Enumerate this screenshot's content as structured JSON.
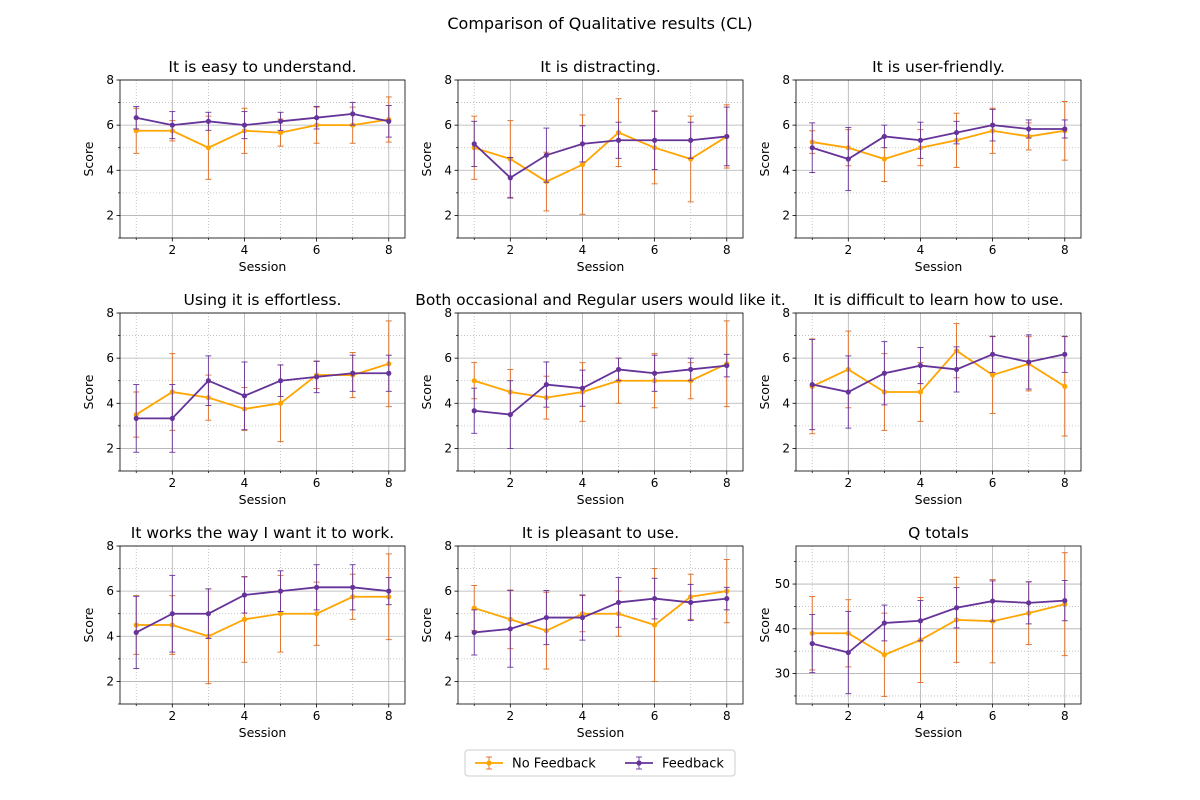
{
  "figure_title": "Comparison of Qualitative results (CL)",
  "legend": {
    "placement": "bottom-center",
    "entries": [
      {
        "label": "No Feedback",
        "color": "#FFA500"
      },
      {
        "label": "Feedback",
        "color": "#663399"
      }
    ]
  },
  "colors": {
    "no_feedback_line": "#FFA500",
    "no_feedback_errorbar": "#E06A1E",
    "feedback_line": "#663399",
    "feedback_errorbar": "#663399"
  },
  "chart_data": [
    {
      "type": "line",
      "title": "It is easy to understand.",
      "xlabel": "Session",
      "ylabel": "Score",
      "xlim": [
        0.55,
        8.45
      ],
      "ylim": [
        1,
        8
      ],
      "xticks": [
        2,
        4,
        6,
        8
      ],
      "yticks": [
        2,
        4,
        6,
        8
      ],
      "grid": true,
      "x": [
        1,
        2,
        3,
        4,
        5,
        6,
        7,
        8
      ],
      "series": [
        {
          "name": "No Feedback",
          "values": [
            5.75,
            5.75,
            5.0,
            5.75,
            5.67,
            6.0,
            6.0,
            6.25
          ],
          "errors": [
            1.0,
            0.45,
            1.4,
            1.0,
            0.6,
            0.8,
            0.8,
            1.0
          ]
        },
        {
          "name": "Feedback",
          "values": [
            6.33,
            6.0,
            6.17,
            6.0,
            6.17,
            6.33,
            6.5,
            6.17
          ],
          "errors": [
            0.5,
            0.6,
            0.4,
            0.6,
            0.4,
            0.5,
            0.5,
            0.7
          ]
        }
      ]
    },
    {
      "type": "line",
      "title": "It is distracting.",
      "xlabel": "Session",
      "ylabel": "Score",
      "xlim": [
        0.55,
        8.45
      ],
      "ylim": [
        1,
        8
      ],
      "xticks": [
        2,
        4,
        6,
        8
      ],
      "yticks": [
        2,
        4,
        6,
        8
      ],
      "grid": true,
      "x": [
        1,
        2,
        3,
        4,
        5,
        6,
        7,
        8
      ],
      "series": [
        {
          "name": "No Feedback",
          "values": [
            5.0,
            4.5,
            3.5,
            4.25,
            5.67,
            5.0,
            4.5,
            5.5
          ],
          "errors": [
            1.4,
            1.7,
            1.3,
            2.2,
            1.5,
            1.6,
            1.9,
            1.4
          ]
        },
        {
          "name": "Feedback",
          "values": [
            5.17,
            3.67,
            4.67,
            5.17,
            5.33,
            5.33,
            5.33,
            5.5
          ],
          "errors": [
            1.0,
            0.9,
            1.2,
            0.8,
            0.8,
            1.3,
            0.8,
            1.3
          ]
        }
      ]
    },
    {
      "type": "line",
      "title": "It is user-friendly.",
      "xlabel": "Session",
      "ylabel": "Score",
      "xlim": [
        0.55,
        8.45
      ],
      "ylim": [
        1,
        8
      ],
      "xticks": [
        2,
        4,
        6,
        8
      ],
      "yticks": [
        2,
        4,
        6,
        8
      ],
      "grid": true,
      "x": [
        1,
        2,
        3,
        4,
        5,
        6,
        7,
        8
      ],
      "series": [
        {
          "name": "No Feedback",
          "values": [
            5.25,
            5.0,
            4.5,
            5.0,
            5.33,
            5.75,
            5.5,
            5.75
          ],
          "errors": [
            0.5,
            0.8,
            1.0,
            0.8,
            1.2,
            1.0,
            0.6,
            1.3
          ]
        },
        {
          "name": "Feedback",
          "values": [
            5.0,
            4.5,
            5.5,
            5.33,
            5.67,
            6.0,
            5.83,
            5.83
          ],
          "errors": [
            1.1,
            1.4,
            0.5,
            0.8,
            0.5,
            0.7,
            0.4,
            0.4
          ]
        }
      ]
    },
    {
      "type": "line",
      "title": "Using it is effortless.",
      "xlabel": "Session",
      "ylabel": "Score",
      "xlim": [
        0.55,
        8.45
      ],
      "ylim": [
        1,
        8
      ],
      "xticks": [
        2,
        4,
        6,
        8
      ],
      "yticks": [
        2,
        4,
        6,
        8
      ],
      "grid": true,
      "x": [
        1,
        2,
        3,
        4,
        5,
        6,
        7,
        8
      ],
      "series": [
        {
          "name": "No Feedback",
          "values": [
            3.5,
            4.5,
            4.25,
            3.75,
            4.0,
            5.25,
            5.25,
            5.75
          ],
          "errors": [
            1.0,
            1.7,
            1.0,
            0.95,
            1.7,
            0.6,
            1.0,
            1.9
          ]
        },
        {
          "name": "Feedback",
          "values": [
            3.33,
            3.33,
            5.0,
            4.33,
            5.0,
            5.17,
            5.33,
            5.33
          ],
          "errors": [
            1.5,
            1.5,
            1.1,
            1.5,
            0.7,
            0.7,
            0.8,
            0.8
          ]
        }
      ]
    },
    {
      "type": "line",
      "title": "Both occasional and Regular users would like it.",
      "xlabel": "Session",
      "ylabel": "Score",
      "xlim": [
        0.55,
        8.45
      ],
      "ylim": [
        1,
        8
      ],
      "xticks": [
        2,
        4,
        6,
        8
      ],
      "yticks": [
        2,
        4,
        6,
        8
      ],
      "grid": true,
      "x": [
        1,
        2,
        3,
        4,
        5,
        6,
        7,
        8
      ],
      "series": [
        {
          "name": "No Feedback",
          "values": [
            5.0,
            4.5,
            4.25,
            4.5,
            5.0,
            5.0,
            5.0,
            5.75
          ],
          "errors": [
            0.8,
            1.0,
            0.95,
            1.3,
            1.0,
            1.2,
            0.8,
            1.9
          ]
        },
        {
          "name": "Feedback",
          "values": [
            3.67,
            3.5,
            4.83,
            4.67,
            5.5,
            5.33,
            5.5,
            5.67
          ],
          "errors": [
            1.0,
            1.5,
            1.0,
            0.8,
            0.5,
            0.8,
            0.5,
            0.5
          ]
        }
      ]
    },
    {
      "type": "line",
      "title": "It is difficult to learn how to use.",
      "xlabel": "Session",
      "ylabel": "Score",
      "xlim": [
        0.55,
        8.45
      ],
      "ylim": [
        1,
        8
      ],
      "xticks": [
        2,
        4,
        6,
        8
      ],
      "yticks": [
        2,
        4,
        6,
        8
      ],
      "grid": true,
      "x": [
        1,
        2,
        3,
        4,
        5,
        6,
        7,
        8
      ],
      "series": [
        {
          "name": "No Feedback",
          "values": [
            4.75,
            5.5,
            4.5,
            4.5,
            6.33,
            5.25,
            5.75,
            4.75
          ],
          "errors": [
            2.1,
            1.7,
            1.7,
            1.3,
            1.2,
            1.7,
            1.2,
            2.2
          ]
        },
        {
          "name": "Feedback",
          "values": [
            4.83,
            4.5,
            5.33,
            5.67,
            5.5,
            6.17,
            5.83,
            6.17
          ],
          "errors": [
            2.0,
            1.6,
            1.4,
            0.8,
            1.0,
            0.8,
            1.2,
            0.8
          ]
        }
      ]
    },
    {
      "type": "line",
      "title": "It works the way I want it to work.",
      "xlabel": "Session",
      "ylabel": "Score",
      "xlim": [
        0.55,
        8.45
      ],
      "ylim": [
        1,
        8
      ],
      "xticks": [
        2,
        4,
        6,
        8
      ],
      "yticks": [
        2,
        4,
        6,
        8
      ],
      "grid": true,
      "x": [
        1,
        2,
        3,
        4,
        5,
        6,
        7,
        8
      ],
      "series": [
        {
          "name": "No Feedback",
          "values": [
            4.5,
            4.5,
            4.0,
            4.75,
            5.0,
            5.0,
            5.75,
            5.75
          ],
          "errors": [
            1.3,
            1.3,
            2.1,
            1.9,
            1.7,
            1.4,
            1.0,
            1.9
          ]
        },
        {
          "name": "Feedback",
          "values": [
            4.17,
            5.0,
            5.0,
            5.83,
            6.0,
            6.17,
            6.17,
            6.0
          ],
          "errors": [
            1.6,
            1.7,
            1.1,
            0.8,
            0.9,
            1.0,
            1.0,
            0.6
          ]
        }
      ]
    },
    {
      "type": "line",
      "title": "It is pleasant to use.",
      "xlabel": "Session",
      "ylabel": "Score",
      "xlim": [
        0.55,
        8.45
      ],
      "ylim": [
        1,
        8
      ],
      "xticks": [
        2,
        4,
        6,
        8
      ],
      "yticks": [
        2,
        4,
        6,
        8
      ],
      "grid": true,
      "x": [
        1,
        2,
        3,
        4,
        5,
        6,
        7,
        8
      ],
      "series": [
        {
          "name": "No Feedback",
          "values": [
            5.25,
            4.75,
            4.25,
            5.0,
            5.0,
            4.5,
            5.75,
            6.0
          ],
          "errors": [
            1.0,
            1.3,
            1.7,
            0.8,
            1.0,
            2.5,
            1.0,
            1.4
          ]
        },
        {
          "name": "Feedback",
          "values": [
            4.17,
            4.33,
            4.83,
            4.83,
            5.5,
            5.67,
            5.5,
            5.67
          ],
          "errors": [
            1.0,
            1.7,
            1.2,
            1.0,
            1.1,
            0.9,
            0.8,
            0.5
          ]
        }
      ]
    },
    {
      "type": "line",
      "title": "Q totals",
      "xlabel": "Session",
      "ylabel": "Score",
      "xlim": [
        0.55,
        8.45
      ],
      "ylim": [
        23.2,
        58.5
      ],
      "xticks": [
        2,
        4,
        6,
        8
      ],
      "yticks": [
        30,
        40,
        50
      ],
      "grid": true,
      "x": [
        1,
        2,
        3,
        4,
        5,
        6,
        7,
        8
      ],
      "series": [
        {
          "name": "No Feedback",
          "values": [
            39.0,
            39.0,
            34.2,
            37.5,
            42.0,
            41.7,
            43.5,
            45.5
          ],
          "errors": [
            8.2,
            7.5,
            9.3,
            9.5,
            9.5,
            9.3,
            7.0,
            11.5
          ]
        },
        {
          "name": "Feedback",
          "values": [
            36.7,
            34.7,
            41.3,
            41.8,
            44.7,
            46.2,
            45.8,
            46.3
          ],
          "errors": [
            6.5,
            9.2,
            4.0,
            4.5,
            4.5,
            4.5,
            4.7,
            4.5
          ]
        }
      ]
    }
  ]
}
